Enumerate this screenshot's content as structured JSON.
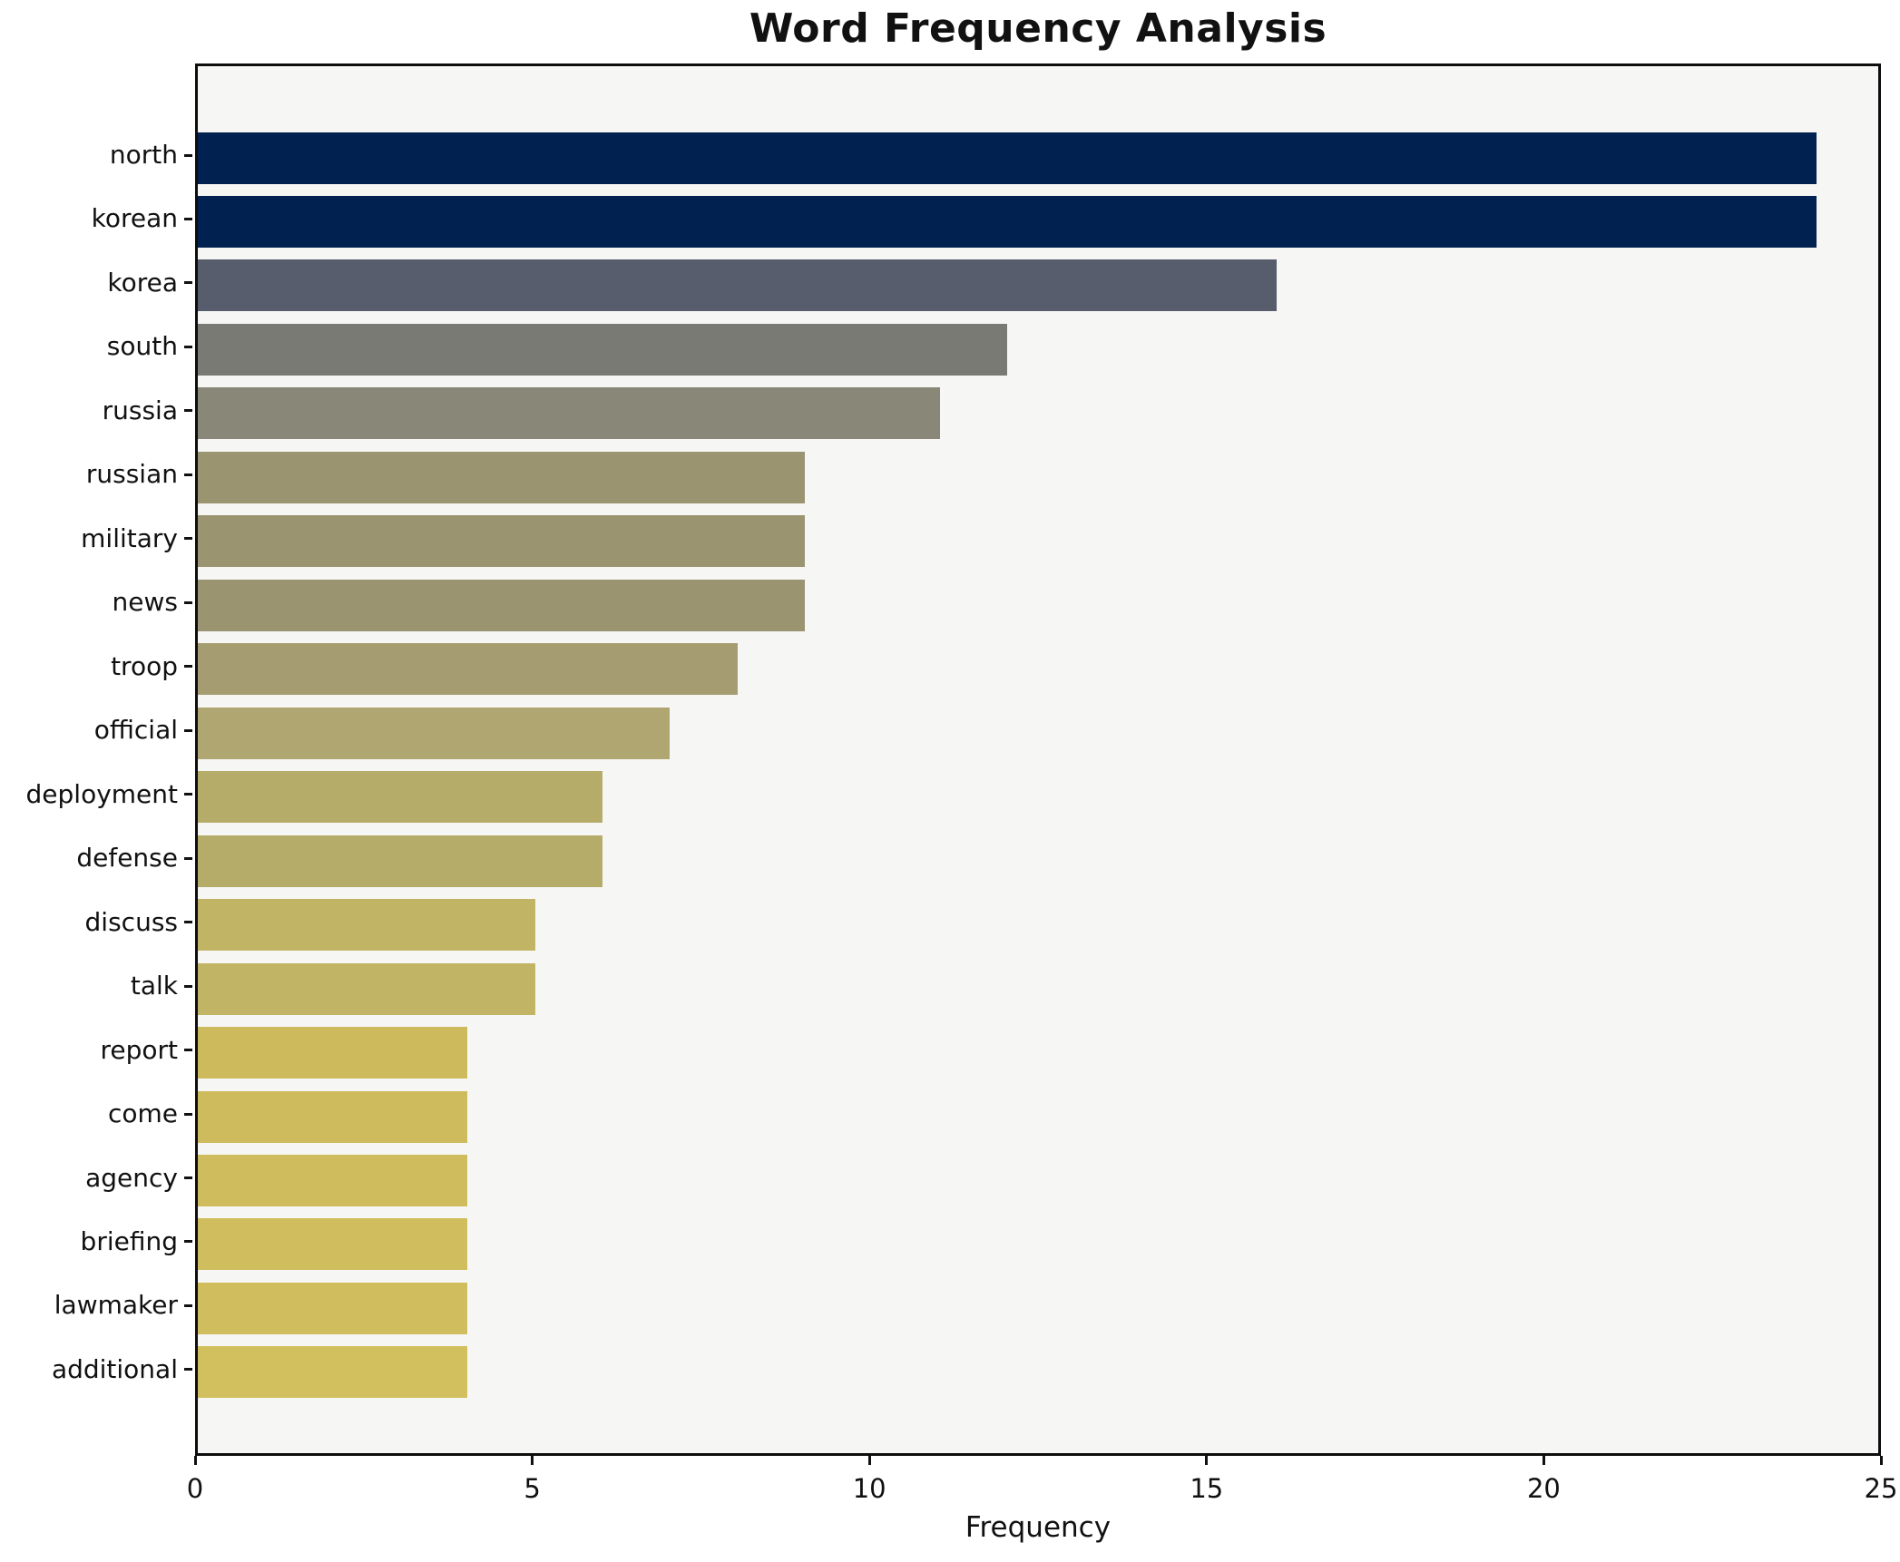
{
  "title": "Word Frequency Analysis",
  "chart_data": {
    "type": "bar",
    "orientation": "horizontal",
    "title": "Word Frequency Analysis",
    "xlabel": "Frequency",
    "ylabel": "",
    "xlim": [
      0,
      25
    ],
    "x_ticks": [
      0,
      5,
      10,
      15,
      20,
      25
    ],
    "x_tick_labels": [
      "0",
      "5",
      "10",
      "15",
      "20",
      "25"
    ],
    "grid": false,
    "legend": null,
    "plot_background": "#f6f6f4",
    "figure_background": "#ffffff",
    "spine_color": "#0e0e0e",
    "categories": [
      "north",
      "korean",
      "korea",
      "south",
      "russia",
      "russian",
      "military",
      "news",
      "troop",
      "official",
      "deployment",
      "defense",
      "discuss",
      "talk",
      "report",
      "come",
      "agency",
      "briefing",
      "lawmaker",
      "additional"
    ],
    "values": [
      24,
      24,
      16,
      12,
      11,
      9,
      9,
      9,
      8,
      7,
      6,
      6,
      5,
      5,
      4,
      4,
      4,
      4,
      4,
      4
    ],
    "bar_colors": [
      "#012250",
      "#012250",
      "#575d6d",
      "#7a7a75",
      "#888778",
      "#9a9470",
      "#9a9470",
      "#9a9470",
      "#a59c72",
      "#b0a671",
      "#b6ac6a",
      "#b6ac6a",
      "#c1b565",
      "#c1b565",
      "#ccba5d",
      "#cdbb5d",
      "#cebc5d",
      "#cfbd5e",
      "#d0be5e",
      "#d2c05e"
    ]
  }
}
